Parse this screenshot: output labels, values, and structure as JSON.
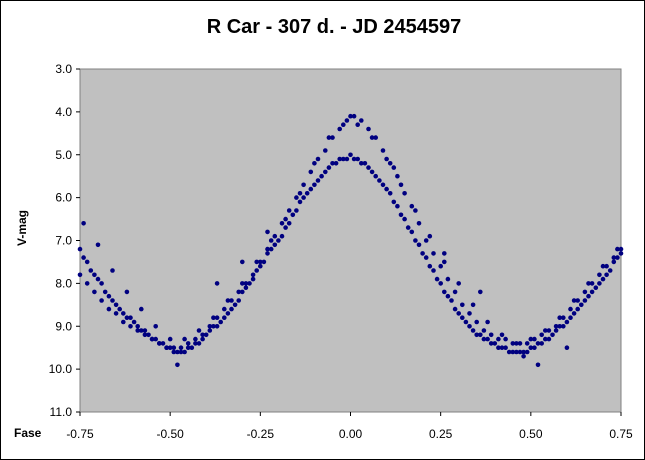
{
  "chart_data": {
    "type": "scatter",
    "title": "R Car -  307 d. - JD 2454597",
    "xlabel": "Fase",
    "ylabel": "V-mag",
    "xlim": [
      -0.75,
      0.75
    ],
    "ylim": [
      3.0,
      11.0
    ],
    "y_inverted": true,
    "x_ticks": [
      "-0.75",
      "-0.50",
      "-0.25",
      "0.00",
      "0.25",
      "0.50",
      "0.75"
    ],
    "y_ticks": [
      "3.0",
      "4.0",
      "5.0",
      "6.0",
      "7.0",
      "8.0",
      "9.0",
      "10.0",
      "11.0"
    ],
    "plot_background": "#c0c0c0",
    "marker_color": "#000080",
    "grid": false,
    "legend": "none",
    "series": [
      {
        "points": [
          [
            -0.75,
            7.2
          ],
          [
            -0.74,
            7.4
          ],
          [
            -0.73,
            7.5
          ],
          [
            -0.72,
            7.7
          ],
          [
            -0.71,
            7.8
          ],
          [
            -0.7,
            7.9
          ],
          [
            -0.69,
            8.0
          ],
          [
            -0.68,
            8.2
          ],
          [
            -0.67,
            8.3
          ],
          [
            -0.66,
            8.4
          ],
          [
            -0.65,
            8.5
          ],
          [
            -0.64,
            8.6
          ],
          [
            -0.63,
            8.7
          ],
          [
            -0.62,
            8.8
          ],
          [
            -0.61,
            8.8
          ],
          [
            -0.6,
            8.9
          ],
          [
            -0.59,
            9.0
          ],
          [
            -0.58,
            9.1
          ],
          [
            -0.57,
            9.1
          ],
          [
            -0.56,
            9.2
          ],
          [
            -0.55,
            9.3
          ],
          [
            -0.54,
            9.3
          ],
          [
            -0.53,
            9.4
          ],
          [
            -0.52,
            9.4
          ],
          [
            -0.51,
            9.5
          ],
          [
            -0.5,
            9.5
          ],
          [
            -0.49,
            9.6
          ],
          [
            -0.48,
            9.6
          ],
          [
            -0.47,
            9.6
          ],
          [
            -0.46,
            9.6
          ],
          [
            -0.45,
            9.5
          ],
          [
            -0.44,
            9.5
          ],
          [
            -0.43,
            9.4
          ],
          [
            -0.42,
            9.4
          ],
          [
            -0.41,
            9.3
          ],
          [
            -0.4,
            9.2
          ],
          [
            -0.39,
            9.1
          ],
          [
            -0.38,
            9.0
          ],
          [
            -0.37,
            9.0
          ],
          [
            -0.36,
            8.9
          ],
          [
            -0.35,
            8.8
          ],
          [
            -0.34,
            8.7
          ],
          [
            -0.33,
            8.6
          ],
          [
            -0.32,
            8.5
          ],
          [
            -0.31,
            8.4
          ],
          [
            -0.3,
            8.2
          ],
          [
            -0.29,
            8.1
          ],
          [
            -0.28,
            8.0
          ],
          [
            -0.27,
            7.9
          ],
          [
            -0.26,
            7.7
          ],
          [
            -0.25,
            7.6
          ],
          [
            -0.24,
            7.5
          ],
          [
            -0.23,
            7.3
          ],
          [
            -0.22,
            7.2
          ],
          [
            -0.21,
            7.1
          ],
          [
            -0.2,
            7.0
          ],
          [
            -0.19,
            6.9
          ],
          [
            -0.18,
            6.7
          ],
          [
            -0.17,
            6.6
          ],
          [
            -0.16,
            6.4
          ],
          [
            -0.15,
            6.3
          ],
          [
            -0.14,
            6.1
          ],
          [
            -0.13,
            6.0
          ],
          [
            -0.12,
            5.9
          ],
          [
            -0.11,
            5.8
          ],
          [
            -0.1,
            5.7
          ],
          [
            -0.09,
            5.6
          ],
          [
            -0.08,
            5.5
          ],
          [
            -0.07,
            5.4
          ],
          [
            -0.06,
            5.3
          ],
          [
            -0.05,
            5.2
          ],
          [
            -0.04,
            5.2
          ],
          [
            -0.03,
            5.1
          ],
          [
            -0.02,
            5.1
          ],
          [
            -0.01,
            5.1
          ],
          [
            0.0,
            5.0
          ],
          [
            0.01,
            5.1
          ],
          [
            0.02,
            5.1
          ],
          [
            0.03,
            5.2
          ],
          [
            0.04,
            5.2
          ],
          [
            0.05,
            5.3
          ],
          [
            0.06,
            5.4
          ],
          [
            0.07,
            5.5
          ],
          [
            0.08,
            5.6
          ],
          [
            0.09,
            5.7
          ],
          [
            0.1,
            5.8
          ],
          [
            0.11,
            5.9
          ],
          [
            0.12,
            6.1
          ],
          [
            0.13,
            6.2
          ],
          [
            0.14,
            6.4
          ],
          [
            0.15,
            6.5
          ],
          [
            0.16,
            6.7
          ],
          [
            0.17,
            6.8
          ],
          [
            0.18,
            7.0
          ],
          [
            0.19,
            7.1
          ],
          [
            0.2,
            7.3
          ],
          [
            0.21,
            7.4
          ],
          [
            0.22,
            7.6
          ],
          [
            0.23,
            7.7
          ],
          [
            0.24,
            7.9
          ],
          [
            0.25,
            8.0
          ],
          [
            0.26,
            8.2
          ],
          [
            0.27,
            8.3
          ],
          [
            0.28,
            8.4
          ],
          [
            0.29,
            8.6
          ],
          [
            0.3,
            8.7
          ],
          [
            0.31,
            8.8
          ],
          [
            0.32,
            8.9
          ],
          [
            0.33,
            9.0
          ],
          [
            0.34,
            9.1
          ],
          [
            0.35,
            9.2
          ],
          [
            0.36,
            9.2
          ],
          [
            0.37,
            9.3
          ],
          [
            0.38,
            9.3
          ],
          [
            0.39,
            9.4
          ],
          [
            0.4,
            9.4
          ],
          [
            0.41,
            9.5
          ],
          [
            0.42,
            9.5
          ],
          [
            0.43,
            9.5
          ],
          [
            0.44,
            9.6
          ],
          [
            0.45,
            9.6
          ],
          [
            0.46,
            9.6
          ],
          [
            0.47,
            9.6
          ],
          [
            0.48,
            9.6
          ],
          [
            0.49,
            9.6
          ],
          [
            0.5,
            9.5
          ],
          [
            0.51,
            9.5
          ],
          [
            0.52,
            9.4
          ],
          [
            0.53,
            9.4
          ],
          [
            0.54,
            9.3
          ],
          [
            0.55,
            9.3
          ],
          [
            0.56,
            9.2
          ],
          [
            0.57,
            9.1
          ],
          [
            0.58,
            9.0
          ],
          [
            0.59,
            9.0
          ],
          [
            0.6,
            8.9
          ],
          [
            0.61,
            8.8
          ],
          [
            0.62,
            8.7
          ],
          [
            0.63,
            8.6
          ],
          [
            0.64,
            8.5
          ],
          [
            0.65,
            8.4
          ],
          [
            0.66,
            8.3
          ],
          [
            0.67,
            8.2
          ],
          [
            0.68,
            8.1
          ],
          [
            0.69,
            8.0
          ],
          [
            0.7,
            7.9
          ],
          [
            0.71,
            7.8
          ],
          [
            0.72,
            7.7
          ],
          [
            0.73,
            7.5
          ],
          [
            0.74,
            7.4
          ],
          [
            0.75,
            7.3
          ],
          [
            -0.75,
            7.8
          ],
          [
            -0.73,
            8.0
          ],
          [
            -0.71,
            8.2
          ],
          [
            -0.69,
            8.4
          ],
          [
            -0.67,
            8.6
          ],
          [
            -0.65,
            8.7
          ],
          [
            -0.63,
            8.9
          ],
          [
            -0.61,
            9.0
          ],
          [
            -0.59,
            9.1
          ],
          [
            -0.57,
            9.2
          ],
          [
            -0.55,
            9.3
          ],
          [
            -0.53,
            9.4
          ],
          [
            -0.51,
            9.5
          ],
          [
            -0.49,
            9.5
          ],
          [
            -0.47,
            9.5
          ],
          [
            -0.45,
            9.4
          ],
          [
            -0.43,
            9.3
          ],
          [
            -0.41,
            9.2
          ],
          [
            -0.39,
            9.0
          ],
          [
            -0.37,
            8.8
          ],
          [
            -0.35,
            8.6
          ],
          [
            -0.33,
            8.4
          ],
          [
            -0.31,
            8.2
          ],
          [
            -0.29,
            8.0
          ],
          [
            -0.27,
            7.8
          ],
          [
            -0.25,
            7.5
          ],
          [
            -0.23,
            7.2
          ],
          [
            -0.21,
            6.9
          ],
          [
            -0.19,
            6.6
          ],
          [
            -0.17,
            6.3
          ],
          [
            -0.15,
            6.0
          ],
          [
            -0.13,
            5.7
          ],
          [
            -0.11,
            5.4
          ],
          [
            -0.09,
            5.1
          ],
          [
            -0.07,
            4.9
          ],
          [
            -0.05,
            4.6
          ],
          [
            -0.03,
            4.4
          ],
          [
            -0.01,
            4.2
          ],
          [
            0.0,
            4.1
          ],
          [
            0.01,
            4.1
          ],
          [
            0.03,
            4.2
          ],
          [
            0.05,
            4.4
          ],
          [
            0.07,
            4.6
          ],
          [
            0.09,
            4.9
          ],
          [
            0.11,
            5.2
          ],
          [
            0.13,
            5.5
          ],
          [
            0.15,
            5.9
          ],
          [
            0.17,
            6.2
          ],
          [
            0.19,
            6.6
          ],
          [
            0.21,
            7.0
          ],
          [
            0.23,
            7.3
          ],
          [
            0.25,
            7.6
          ],
          [
            0.27,
            7.9
          ],
          [
            0.29,
            8.2
          ],
          [
            0.31,
            8.5
          ],
          [
            0.33,
            8.7
          ],
          [
            0.35,
            8.9
          ],
          [
            0.37,
            9.1
          ],
          [
            0.39,
            9.2
          ],
          [
            0.41,
            9.3
          ],
          [
            0.43,
            9.3
          ],
          [
            0.45,
            9.4
          ],
          [
            0.47,
            9.4
          ],
          [
            0.49,
            9.4
          ],
          [
            0.51,
            9.3
          ],
          [
            0.53,
            9.2
          ],
          [
            0.55,
            9.1
          ],
          [
            0.57,
            9.0
          ],
          [
            0.59,
            8.8
          ],
          [
            0.61,
            8.6
          ],
          [
            0.63,
            8.4
          ],
          [
            0.65,
            8.2
          ],
          [
            0.67,
            8.0
          ],
          [
            0.69,
            7.8
          ],
          [
            0.71,
            7.6
          ],
          [
            0.73,
            7.4
          ],
          [
            0.75,
            7.2
          ],
          [
            -0.74,
            6.6
          ],
          [
            -0.7,
            7.1
          ],
          [
            -0.66,
            7.7
          ],
          [
            -0.62,
            8.2
          ],
          [
            -0.58,
            8.6
          ],
          [
            -0.54,
            9.0
          ],
          [
            -0.5,
            9.3
          ],
          [
            -0.46,
            9.3
          ],
          [
            -0.42,
            9.1
          ],
          [
            -0.38,
            8.8
          ],
          [
            -0.34,
            8.4
          ],
          [
            -0.3,
            8.0
          ],
          [
            -0.26,
            7.5
          ],
          [
            -0.22,
            7.0
          ],
          [
            -0.18,
            6.5
          ],
          [
            -0.14,
            5.9
          ],
          [
            -0.1,
            5.2
          ],
          [
            -0.06,
            4.6
          ],
          [
            -0.02,
            4.3
          ],
          [
            0.02,
            4.3
          ],
          [
            0.06,
            4.6
          ],
          [
            0.1,
            5.1
          ],
          [
            0.14,
            5.7
          ],
          [
            0.18,
            6.3
          ],
          [
            0.22,
            6.9
          ],
          [
            0.26,
            7.5
          ],
          [
            0.3,
            8.0
          ],
          [
            0.34,
            8.5
          ],
          [
            0.38,
            8.9
          ],
          [
            0.42,
            9.2
          ],
          [
            0.46,
            9.4
          ],
          [
            0.5,
            9.3
          ],
          [
            0.54,
            9.1
          ],
          [
            0.58,
            8.8
          ],
          [
            0.62,
            8.4
          ],
          [
            0.66,
            8.0
          ],
          [
            0.7,
            7.6
          ],
          [
            0.74,
            7.2
          ],
          [
            -0.48,
            9.9
          ],
          [
            -0.3,
            7.5
          ],
          [
            -0.37,
            8.0
          ],
          [
            0.52,
            9.9
          ],
          [
            0.48,
            9.7
          ],
          [
            -0.23,
            6.8
          ],
          [
            0.12,
            5.3
          ],
          [
            0.26,
            7.3
          ],
          [
            0.36,
            8.2
          ],
          [
            0.6,
            9.5
          ]
        ]
      }
    ]
  }
}
